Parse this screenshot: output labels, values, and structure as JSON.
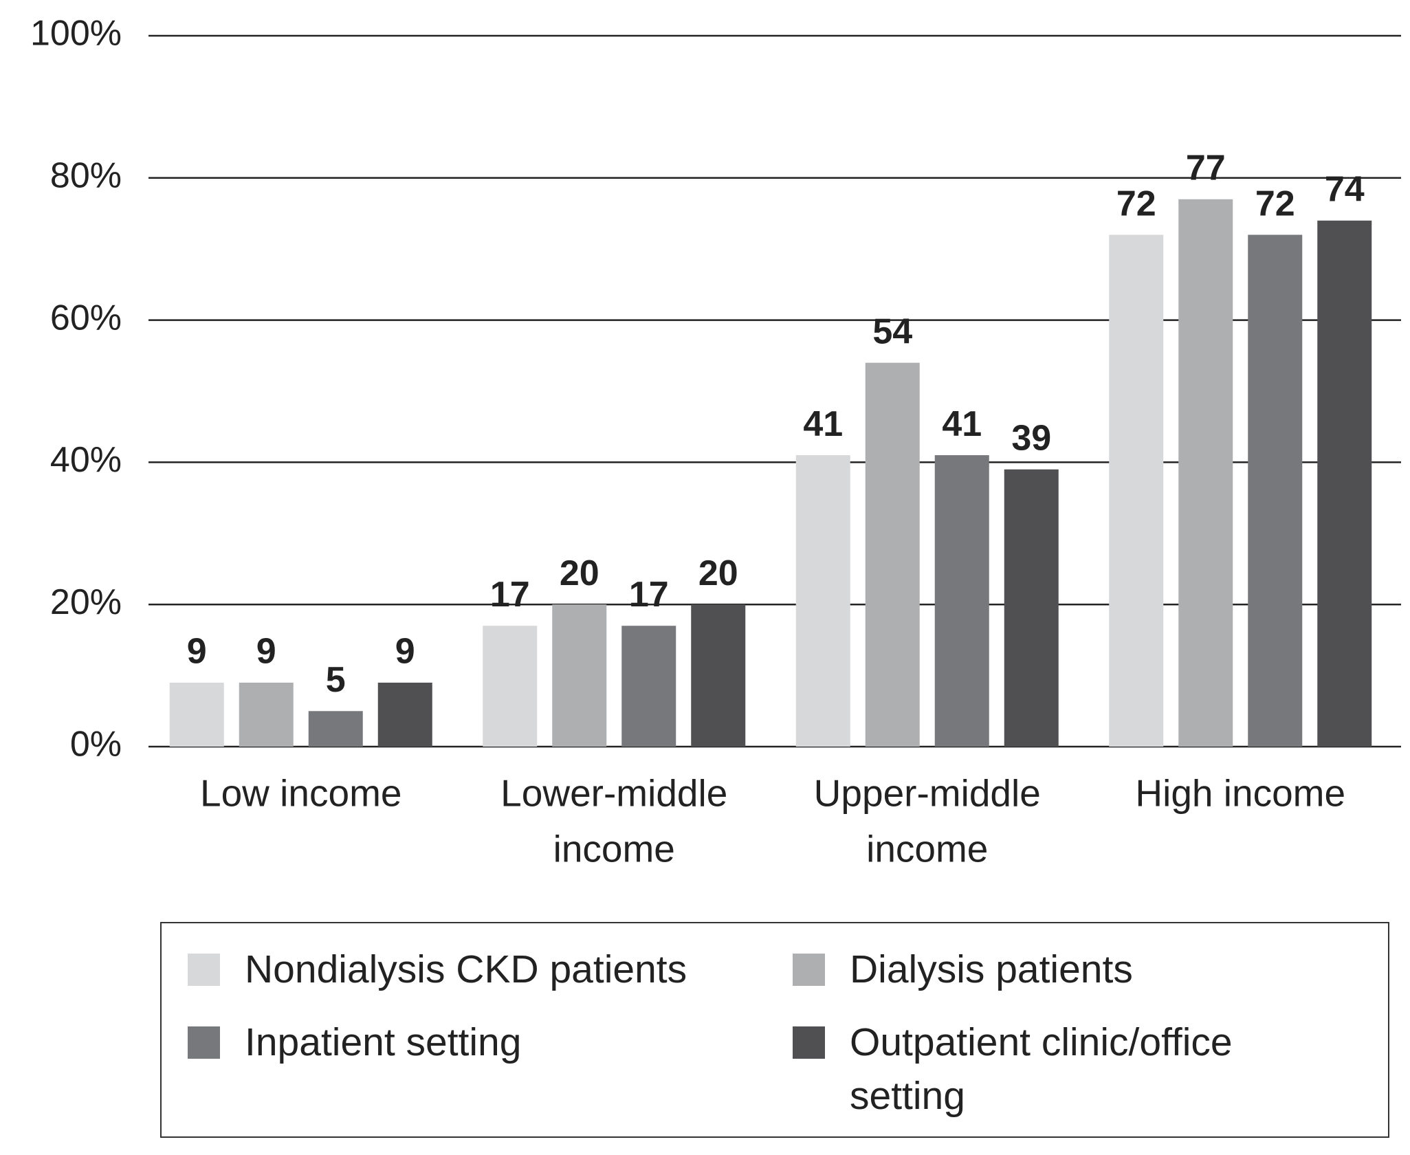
{
  "chart_data": {
    "type": "bar",
    "categories": [
      [
        "Low income"
      ],
      [
        "Lower-middle",
        "income"
      ],
      [
        "Upper-middle",
        "income"
      ],
      [
        "High income"
      ]
    ],
    "series": [
      {
        "name": "Nondialysis CKD patients",
        "color": "#d7d8da",
        "values": [
          9,
          17,
          41,
          72
        ]
      },
      {
        "name": "Dialysis patients",
        "color": "#aeafb1",
        "values": [
          9,
          20,
          54,
          77
        ]
      },
      {
        "name": "Inpatient setting",
        "color": "#77787b",
        "values": [
          5,
          17,
          41,
          72
        ]
      },
      {
        "name": "Outpatient clinic/office setting",
        "color": "#505052",
        "values": [
          9,
          20,
          39,
          74
        ]
      }
    ],
    "ylim": [
      0,
      100
    ],
    "yticks": [
      {
        "value": 0,
        "label": "0%"
      },
      {
        "value": 20,
        "label": "20%"
      },
      {
        "value": 40,
        "label": "40%"
      },
      {
        "value": 60,
        "label": "60%"
      },
      {
        "value": 80,
        "label": "80%"
      },
      {
        "value": 100,
        "label": "100%"
      }
    ],
    "grid": true,
    "legend": "bottom"
  }
}
